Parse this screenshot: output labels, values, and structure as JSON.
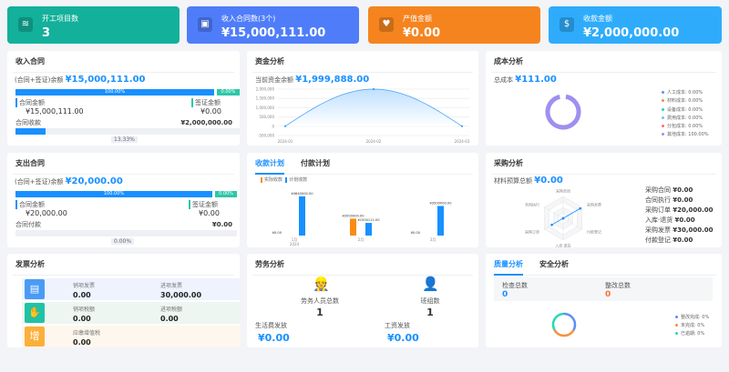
{
  "colors": {
    "teal": "#13b09b",
    "indigo": "#4f7df9",
    "orange": "#f5841f",
    "sky": "#2eacfb",
    "accent": "#1890ff"
  },
  "top_cards": [
    {
      "label": "开工项目数",
      "value": "3",
      "icon": "layers-icon"
    },
    {
      "label": "收入合同数(3个)",
      "value": "¥15,000,111.00",
      "icon": "contract-icon"
    },
    {
      "label": "产值金额",
      "value": "¥0.00",
      "icon": "heart-icon"
    },
    {
      "label": "收款金额",
      "value": "¥2,000,000.00",
      "icon": "money-bag-icon"
    }
  ],
  "income": {
    "title": "收入合同",
    "balance_label": "(合同+签证)余额",
    "balance": "¥15,000,111.00",
    "bar_main": "100.00%",
    "bar_side": "0.00%",
    "contract_label": "合同金额",
    "contract_value": "¥15,000,111.00",
    "visa_label": "签证金额",
    "visa_value": "¥0.00",
    "collect_label": "合同收款",
    "collect_value": "¥2,000,000.00",
    "collect_pct": "13.33%",
    "collect_fraction": 0.1333
  },
  "expense": {
    "title": "支出合同",
    "balance_label": "(合同+签证)余额",
    "balance": "¥20,000.00",
    "bar_main": "100.00%",
    "bar_side": "0.00%",
    "contract_label": "合同金额",
    "contract_value": "¥20,000.00",
    "visa_label": "签证金额",
    "visa_value": "¥0.00",
    "pay_label": "合同付款",
    "pay_value": "¥0.00",
    "pay_pct": "0.00%",
    "pay_fraction": 0
  },
  "funds": {
    "title": "资金分析",
    "balance_label": "当前资金余额",
    "balance": "¥1,999,888.00",
    "chart_data": {
      "type": "area",
      "x": [
        "2024-01",
        "2024-02",
        "2024-03"
      ],
      "y": [
        0,
        2000000,
        0
      ],
      "yticks": [
        "2,000,000",
        "1,500,000",
        "1,000,000",
        "500,000",
        "0",
        "-500,000"
      ],
      "ylim": [
        -500000,
        2000000
      ],
      "grid": true
    }
  },
  "cost": {
    "title": "成本分析",
    "total_label": "总成本",
    "total": "¥111.00",
    "chart_data": {
      "type": "pie",
      "legend_position": "right",
      "series": [
        {
          "name": "人工成本: 0.00%",
          "value": 0,
          "color": "#5b8ff9"
        },
        {
          "name": "材料成本: 0.00%",
          "value": 0,
          "color": "#f6903d"
        },
        {
          "name": "设备成本: 0.00%",
          "value": 0,
          "color": "#2ad6b4"
        },
        {
          "name": "费用成本: 0.00%",
          "value": 0,
          "color": "#6dc8ec"
        },
        {
          "name": "分包成本: 0.00%",
          "value": 0,
          "color": "#ff6b6b"
        },
        {
          "name": "其他成本: 100.00%",
          "value": 100,
          "color": "#9f8ff0"
        }
      ]
    }
  },
  "plan": {
    "tabs": [
      "收款计划",
      "付款计划"
    ],
    "active_tab": 0,
    "chart_data": {
      "type": "bar",
      "categories": [
        "1月",
        "2月",
        "3月"
      ],
      "xsub": "2024",
      "series": [
        {
          "name": "实际收款",
          "color": "#fa8c16",
          "values": [
            0,
            2000000,
            0
          ],
          "labels": [
            "¥0.00",
            "¥2000000.00",
            "¥0.00"
          ]
        },
        {
          "name": "计划收款",
          "color": "#1890ff",
          "values": [
            4640000,
            1500111,
            3500000
          ],
          "labels": [
            "¥4640000.00",
            "¥1500111.00",
            "¥3500000.00"
          ]
        }
      ]
    }
  },
  "purchase": {
    "title": "采购分析",
    "budget_label": "材料预算总额",
    "budget": "¥0.00",
    "chart_data": {
      "type": "radar",
      "axes": [
        "采购合同",
        "采购发票",
        "付款登记",
        "入库·退货",
        "采购订单",
        "合同执行"
      ],
      "values": [
        0,
        30000,
        0,
        0,
        20000,
        0
      ]
    },
    "items": [
      {
        "label": "采购合同",
        "value": "¥0.00"
      },
      {
        "label": "合同执行",
        "value": "¥0.00"
      },
      {
        "label": "采购订单",
        "value": "¥20,000.00"
      },
      {
        "label": "入库·退货",
        "value": "¥0.00"
      },
      {
        "label": "采购发票",
        "value": "¥30,000.00"
      },
      {
        "label": "付款登记",
        "value": "¥0.00"
      }
    ]
  },
  "invoice": {
    "title": "发票分析",
    "rows": [
      {
        "icon": "invoice-icon",
        "a_label": "销项发票",
        "a_value": "0.00",
        "b_label": "进项发票",
        "b_value": "30,000.00"
      },
      {
        "icon": "tax-hand-icon",
        "a_label": "销项税额",
        "a_value": "0.00",
        "b_label": "进项税额",
        "b_value": "0.00"
      },
      {
        "icon": "vat-icon",
        "a_label": "应缴增值税",
        "a_value": "0.00"
      }
    ]
  },
  "labor": {
    "title": "劳务分析",
    "workers_label": "劳务人员总数",
    "workers": "1",
    "teams_label": "班组数",
    "teams": "1",
    "living_label": "生活费发放",
    "living": "¥0.00",
    "wage_label": "工资发放",
    "wage": "¥0.00"
  },
  "quality": {
    "tabs": [
      "质量分析",
      "安全分析"
    ],
    "active_tab": 0,
    "check_label": "检查总数",
    "check": "0",
    "fix_label": "整改总数",
    "fix": "0",
    "chart_data": {
      "type": "pie",
      "legend_position": "right",
      "series": [
        {
          "name": "整改完成: 0%",
          "color": "#5b8ff9"
        },
        {
          "name": "未完成: 0%",
          "color": "#f6903d"
        },
        {
          "name": "已逾期: 0%",
          "color": "#2ad6b4"
        }
      ]
    }
  }
}
